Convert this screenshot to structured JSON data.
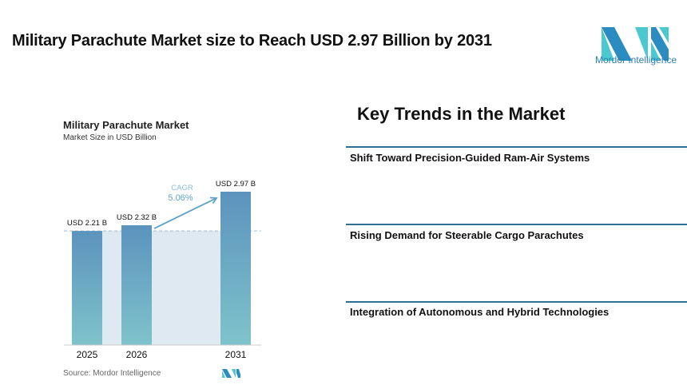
{
  "header": {
    "title": "Military Parachute Market size to Reach USD 2.97 Billion by 2031",
    "logo_text": "Mordor Intelligence"
  },
  "chart_data": {
    "type": "bar",
    "title": "Military Parachute Market",
    "subtitle": "Market Size in USD Billion",
    "categories": [
      "2025",
      "2026",
      "2031"
    ],
    "values": [
      2.21,
      2.32,
      2.97
    ],
    "data_labels": [
      "USD 2.21 B",
      "USD 2.32 B",
      "USD 2.97 B"
    ],
    "annotation": {
      "label": "CAGR",
      "value": "5.06%"
    },
    "source": "Source:  Mordor Intelligence",
    "colors": {
      "bar_top": "#5b93bd",
      "bar_bottom": "#7fc3cb",
      "shade": "#dfe9f1",
      "annotation": "#5fa0c8"
    }
  },
  "trends": {
    "title": "Key Trends in the Market",
    "items": [
      "Shift Toward Precision-Guided Ram-Air Systems",
      "Rising Demand for Steerable Cargo Parachutes",
      "Integration of Autonomous and Hybrid Technologies"
    ]
  }
}
